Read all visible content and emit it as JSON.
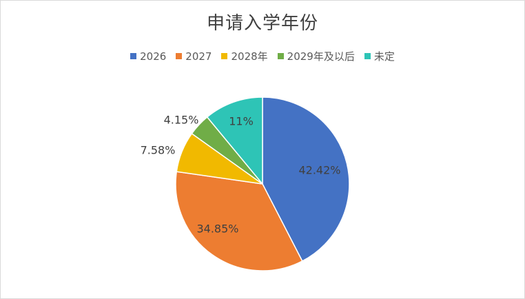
{
  "chart_data": {
    "type": "pie",
    "title": "申请入学年份",
    "legend_position": "top",
    "slices": [
      {
        "label": "2026",
        "value": 42.42,
        "value_label": "42.42%",
        "color": "#4472C4"
      },
      {
        "label": "2027",
        "value": 34.85,
        "value_label": "34.85%",
        "color": "#ED7D31"
      },
      {
        "label": "2028年",
        "value": 7.58,
        "value_label": "7.58%",
        "color": "#F1B900"
      },
      {
        "label": "2029年及以后",
        "value": 4.15,
        "value_label": "4.15%",
        "color": "#70AD47"
      },
      {
        "label": "未定",
        "value": 11,
        "value_label": "11%",
        "color": "#2EC4B6"
      }
    ]
  }
}
